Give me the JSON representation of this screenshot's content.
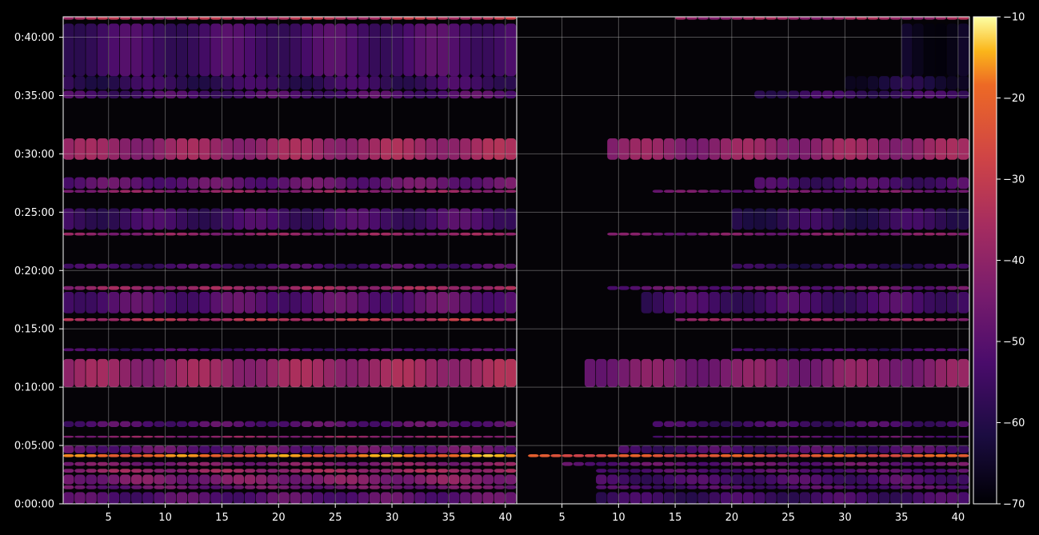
{
  "chart_data": {
    "type": "heatmap",
    "title": "",
    "xlabel": "",
    "ylabel": "",
    "panels": [
      {
        "name": "",
        "xlim": [
          1,
          40
        ],
        "x_ticks": [
          5,
          10,
          15,
          20,
          25,
          30,
          35,
          40
        ],
        "x_tick_labels": [
          "5",
          "10",
          "15",
          "20",
          "25",
          "30",
          "35",
          "40"
        ]
      },
      {
        "name": "",
        "xlim": [
          1,
          40
        ],
        "x_ticks": [
          5,
          10,
          15,
          20,
          25,
          30,
          35,
          40
        ],
        "x_tick_labels": [
          "5",
          "10",
          "15",
          "20",
          "25",
          "30",
          "35",
          "40"
        ]
      }
    ],
    "ylim_seconds": [
      0,
      2505
    ],
    "y_ticks_seconds": [
      0,
      300,
      600,
      900,
      1200,
      1500,
      1800,
      2100,
      2400
    ],
    "y_tick_labels": [
      "0:00:00",
      "0:05:00",
      "0:10:00",
      "0:15:00",
      "0:20:00",
      "0:25:00",
      "0:30:00",
      "0:35:00",
      "0:40:00"
    ],
    "colorbar": {
      "range": [
        -70,
        -10
      ],
      "ticks": [
        -70,
        -60,
        -50,
        -40,
        -30,
        -20,
        -10
      ],
      "tick_labels": [
        "−70",
        "−60",
        "−50",
        "−40",
        "−30",
        "−20",
        "−10"
      ],
      "colormap": "inferno"
    },
    "grid": true,
    "bands": [
      {
        "t_start": 0,
        "t_end": 60,
        "left": -52,
        "right": -57,
        "right_x_start": 8
      },
      {
        "t_start": 75,
        "t_end": 95,
        "left": -48,
        "right": -54,
        "right_x_start": 8
      },
      {
        "t_start": 100,
        "t_end": 150,
        "left": -45,
        "right": -55,
        "right_x_start": 8
      },
      {
        "t_start": 160,
        "t_end": 180,
        "left": -40,
        "right": -53,
        "right_x_start": 8
      },
      {
        "t_start": 195,
        "t_end": 215,
        "left": -45,
        "right": -50,
        "right_x_start": 5
      },
      {
        "t_start": 240,
        "t_end": 255,
        "left": -20,
        "right": -25,
        "right_x_start": 2
      },
      {
        "t_start": 260,
        "t_end": 300,
        "left": -50,
        "right": -55,
        "right_x_start": 10
      },
      {
        "t_start": 340,
        "t_end": 350,
        "left": -42,
        "right": -52,
        "right_x_start": 13
      },
      {
        "t_start": 395,
        "t_end": 425,
        "left": -52,
        "right": -56,
        "right_x_start": 13
      },
      {
        "t_start": 600,
        "t_end": 745,
        "left": -40,
        "right": -45,
        "right_x_start": 7
      },
      {
        "t_start": 785,
        "t_end": 800,
        "left": -55,
        "right": -58,
        "right_x_start": 20
      },
      {
        "t_start": 940,
        "t_end": 955,
        "left": -35,
        "right": -42,
        "right_x_start": 15
      },
      {
        "t_start": 980,
        "t_end": 1090,
        "left": -52,
        "right": -56,
        "right_x_start": 12
      },
      {
        "t_start": 1100,
        "t_end": 1120,
        "left": -40,
        "right": -50,
        "right_x_start": 9
      },
      {
        "t_start": 1210,
        "t_end": 1235,
        "left": -55,
        "right": -60,
        "right_x_start": 20
      },
      {
        "t_start": 1380,
        "t_end": 1395,
        "left": -42,
        "right": -46,
        "right_x_start": 9
      },
      {
        "t_start": 1410,
        "t_end": 1520,
        "left": -56,
        "right": -60,
        "right_x_start": 20
      },
      {
        "t_start": 1600,
        "t_end": 1615,
        "left": -42,
        "right": -48,
        "right_x_start": 13
      },
      {
        "t_start": 1620,
        "t_end": 1680,
        "left": -50,
        "right": -56,
        "right_x_start": 22
      },
      {
        "t_start": 1770,
        "t_end": 1880,
        "left": -40,
        "right": -42,
        "right_x_start": 9
      },
      {
        "t_start": 2085,
        "t_end": 2125,
        "left": -54,
        "right": -58,
        "right_x_start": 22
      },
      {
        "t_start": 2130,
        "t_end": 2200,
        "left": -58,
        "right": -65,
        "right_x_start": 30
      },
      {
        "t_start": 2200,
        "t_end": 2470,
        "left": -55,
        "right": -68,
        "right_x_start": 35
      },
      {
        "t_start": 2490,
        "t_end": 2505,
        "left": -35,
        "right": -40,
        "right_x_start": 15
      }
    ]
  }
}
